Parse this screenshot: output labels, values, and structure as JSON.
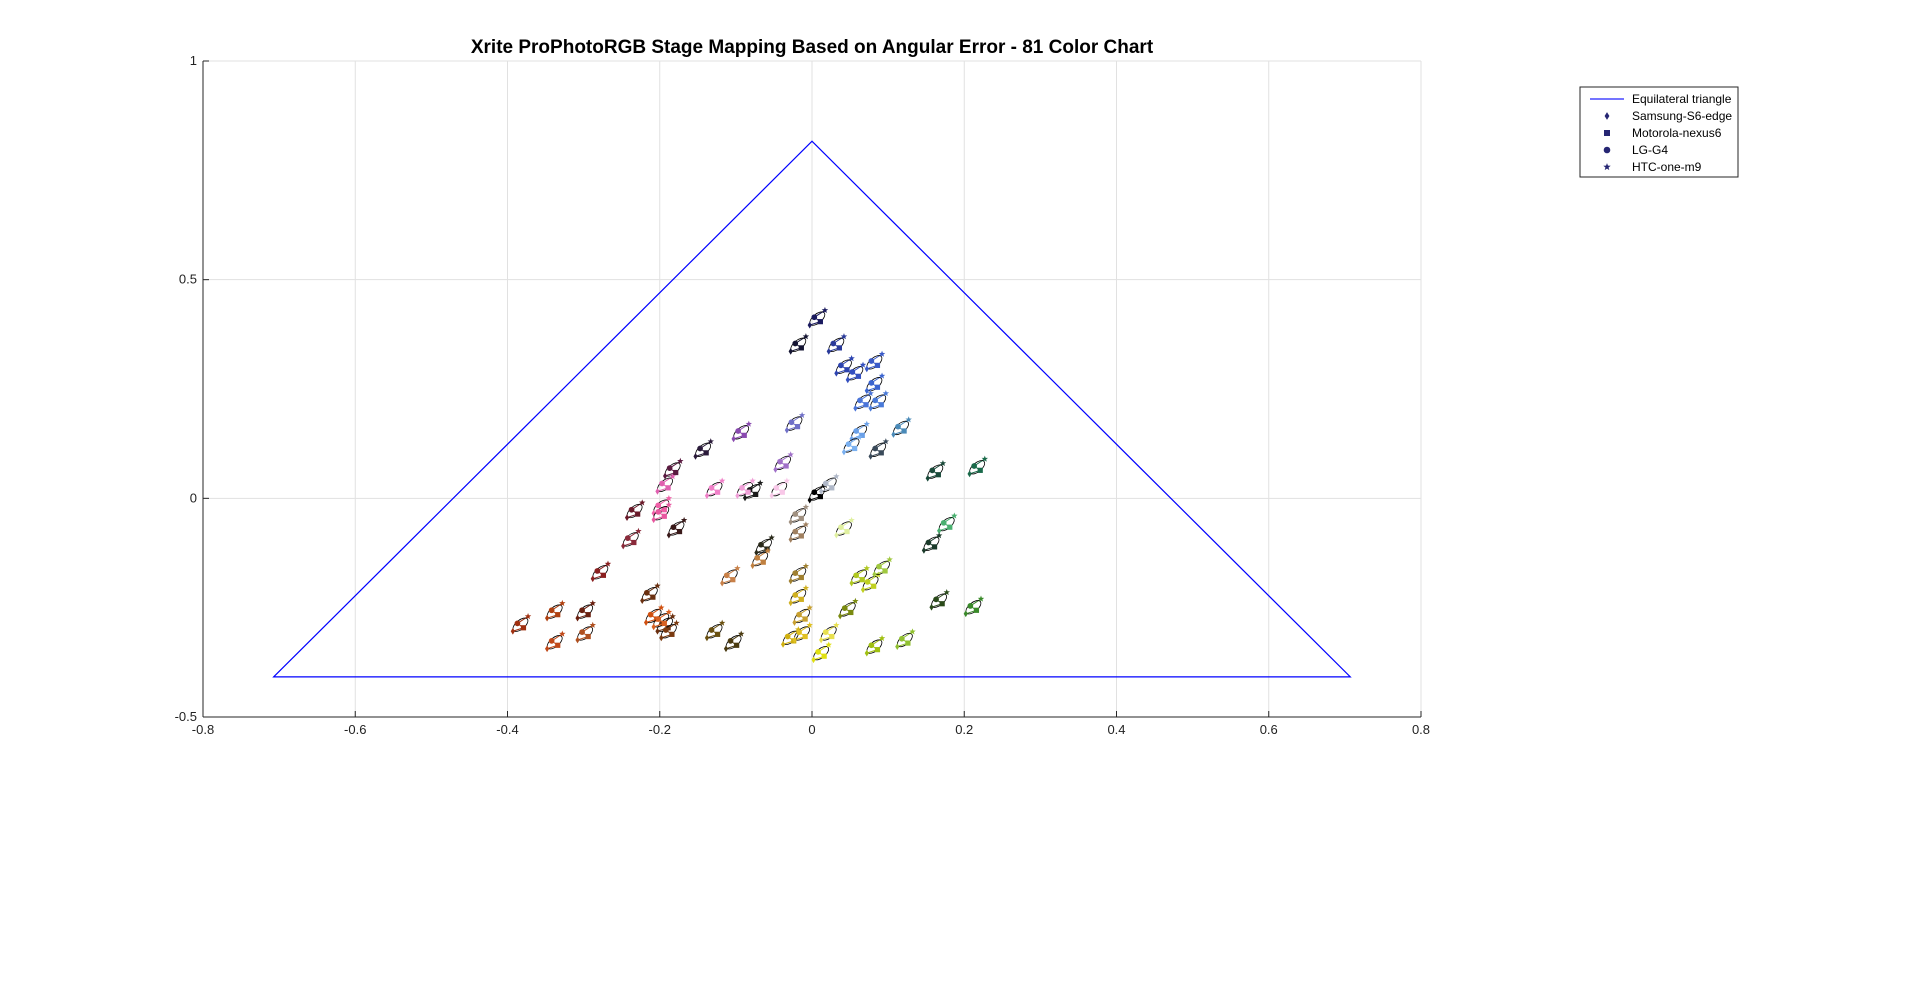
{
  "window": {
    "background": "#ffffff"
  },
  "chart_data": {
    "type": "scatter",
    "title": "Xrite ProPhotoRGB Stage Mapping Based on Angular Error - 81 Color Chart",
    "xlabel": "",
    "ylabel": "",
    "xlim": [
      -0.8,
      0.8
    ],
    "ylim": [
      -0.5,
      1
    ],
    "x_ticks": [
      -0.8,
      -0.6,
      -0.4,
      -0.2,
      0,
      0.2,
      0.4,
      0.6,
      0.8
    ],
    "x_tick_labels": [
      "-0.8",
      "-0.6",
      "-0.4",
      "-0.2",
      "0",
      "0.2",
      "0.4",
      "0.6",
      "0.8"
    ],
    "y_ticks": [
      -0.5,
      0,
      0.5,
      1
    ],
    "y_tick_labels": [
      "-0.5",
      "0",
      "0.5",
      "1"
    ],
    "grid": true,
    "legend_position": "top-right",
    "legend": [
      {
        "label": "Equilateral triangle",
        "marker": "line",
        "color": "#2020ff"
      },
      {
        "label": "Samsung-S6-edge",
        "marker": "diamond",
        "color": "#262673"
      },
      {
        "label": "Motorola-nexus6",
        "marker": "square",
        "color": "#262673"
      },
      {
        "label": "LG-G4",
        "marker": "circle",
        "color": "#262673"
      },
      {
        "label": "HTC-one-m9",
        "marker": "star",
        "color": "#262673"
      }
    ],
    "triangle": {
      "name": "Equilateral triangle",
      "color": "#0000ff",
      "vertices": [
        [
          -0.7071,
          -0.4082
        ],
        [
          0,
          0.8165
        ],
        [
          0.7071,
          -0.4082
        ]
      ]
    },
    "patches": [
      {
        "x": 0.005,
        "y": 0.41,
        "color": "#1a1a5e"
      },
      {
        "x": -0.02,
        "y": 0.35,
        "color": "#141432"
      },
      {
        "x": 0.03,
        "y": 0.35,
        "color": "#2a3a9a"
      },
      {
        "x": 0.04,
        "y": 0.3,
        "color": "#2d44b0"
      },
      {
        "x": 0.055,
        "y": 0.285,
        "color": "#3450c0"
      },
      {
        "x": 0.08,
        "y": 0.31,
        "color": "#3a5ac8"
      },
      {
        "x": 0.08,
        "y": 0.26,
        "color": "#3a64d0"
      },
      {
        "x": 0.065,
        "y": 0.22,
        "color": "#4a74d8"
      },
      {
        "x": 0.085,
        "y": 0.22,
        "color": "#4a7ad8"
      },
      {
        "x": -0.025,
        "y": 0.17,
        "color": "#7070c8"
      },
      {
        "x": -0.095,
        "y": 0.15,
        "color": "#8a4ab0"
      },
      {
        "x": -0.145,
        "y": 0.11,
        "color": "#2a1a3a"
      },
      {
        "x": 0.06,
        "y": 0.15,
        "color": "#6aa0e8"
      },
      {
        "x": 0.05,
        "y": 0.12,
        "color": "#7ab0f0"
      },
      {
        "x": 0.085,
        "y": 0.11,
        "color": "#3a4a5a"
      },
      {
        "x": 0.115,
        "y": 0.16,
        "color": "#4a8ab8"
      },
      {
        "x": -0.04,
        "y": 0.08,
        "color": "#a070c8"
      },
      {
        "x": -0.185,
        "y": 0.065,
        "color": "#5a1a40"
      },
      {
        "x": -0.195,
        "y": 0.03,
        "color": "#e060b0"
      },
      {
        "x": -0.13,
        "y": 0.02,
        "color": "#f080c8"
      },
      {
        "x": -0.08,
        "y": 0.015,
        "color": "#1a1a1a"
      },
      {
        "x": -0.09,
        "y": 0.02,
        "color": "#f0a0d8"
      },
      {
        "x": -0.045,
        "y": 0.02,
        "color": "#f8c8e8"
      },
      {
        "x": 0.005,
        "y": 0.01,
        "color": "#000000"
      },
      {
        "x": 0.02,
        "y": 0.03,
        "color": "#b0b8c8"
      },
      {
        "x": 0.16,
        "y": 0.06,
        "color": "#1a4a3a"
      },
      {
        "x": 0.215,
        "y": 0.07,
        "color": "#1a6a4a"
      },
      {
        "x": -0.235,
        "y": -0.03,
        "color": "#6a1a2a"
      },
      {
        "x": -0.2,
        "y": -0.02,
        "color": "#f060a8"
      },
      {
        "x": -0.2,
        "y": -0.035,
        "color": "#e858a0"
      },
      {
        "x": -0.18,
        "y": -0.07,
        "color": "#3a1a1a"
      },
      {
        "x": -0.24,
        "y": -0.095,
        "color": "#8a2a3a"
      },
      {
        "x": -0.02,
        "y": -0.04,
        "color": "#a09080"
      },
      {
        "x": 0.04,
        "y": -0.07,
        "color": "#e0f0a0"
      },
      {
        "x": 0.175,
        "y": -0.06,
        "color": "#4ab070"
      },
      {
        "x": 0.155,
        "y": -0.105,
        "color": "#1a3a2a"
      },
      {
        "x": -0.02,
        "y": -0.08,
        "color": "#a08060"
      },
      {
        "x": -0.065,
        "y": -0.11,
        "color": "#2a2a1a"
      },
      {
        "x": -0.07,
        "y": -0.14,
        "color": "#c08040"
      },
      {
        "x": -0.28,
        "y": -0.17,
        "color": "#8a2020"
      },
      {
        "x": -0.11,
        "y": -0.18,
        "color": "#c88048"
      },
      {
        "x": -0.02,
        "y": -0.175,
        "color": "#a08030"
      },
      {
        "x": -0.02,
        "y": -0.225,
        "color": "#d0b020"
      },
      {
        "x": 0.06,
        "y": -0.18,
        "color": "#b0c820"
      },
      {
        "x": 0.075,
        "y": -0.195,
        "color": "#c0d020"
      },
      {
        "x": 0.09,
        "y": -0.16,
        "color": "#a0c840"
      },
      {
        "x": -0.215,
        "y": -0.22,
        "color": "#6a3010"
      },
      {
        "x": -0.34,
        "y": -0.26,
        "color": "#b04010"
      },
      {
        "x": -0.3,
        "y": -0.26,
        "color": "#6a2010"
      },
      {
        "x": -0.21,
        "y": -0.27,
        "color": "#d05010"
      },
      {
        "x": -0.195,
        "y": -0.29,
        "color": "#6a3010"
      },
      {
        "x": -0.015,
        "y": -0.27,
        "color": "#c8a030"
      },
      {
        "x": 0.045,
        "y": -0.255,
        "color": "#7a8a10"
      },
      {
        "x": 0.165,
        "y": -0.235,
        "color": "#2a4a1a"
      },
      {
        "x": 0.21,
        "y": -0.25,
        "color": "#3a8a2a"
      },
      {
        "x": -0.385,
        "y": -0.29,
        "color": "#a03010"
      },
      {
        "x": -0.3,
        "y": -0.31,
        "color": "#b05020"
      },
      {
        "x": -0.34,
        "y": -0.33,
        "color": "#c04818"
      },
      {
        "x": -0.2,
        "y": -0.28,
        "color": "#d86020"
      },
      {
        "x": -0.19,
        "y": -0.305,
        "color": "#7a3a10"
      },
      {
        "x": -0.13,
        "y": -0.305,
        "color": "#6a5010"
      },
      {
        "x": -0.105,
        "y": -0.33,
        "color": "#4a3a10"
      },
      {
        "x": -0.03,
        "y": -0.32,
        "color": "#d0b010"
      },
      {
        "x": -0.015,
        "y": -0.31,
        "color": "#e0c020"
      },
      {
        "x": 0.02,
        "y": -0.31,
        "color": "#e8e050"
      },
      {
        "x": 0.01,
        "y": -0.355,
        "color": "#e0e010"
      },
      {
        "x": 0.08,
        "y": -0.34,
        "color": "#a0c010"
      },
      {
        "x": 0.12,
        "y": -0.325,
        "color": "#90c030"
      }
    ]
  }
}
